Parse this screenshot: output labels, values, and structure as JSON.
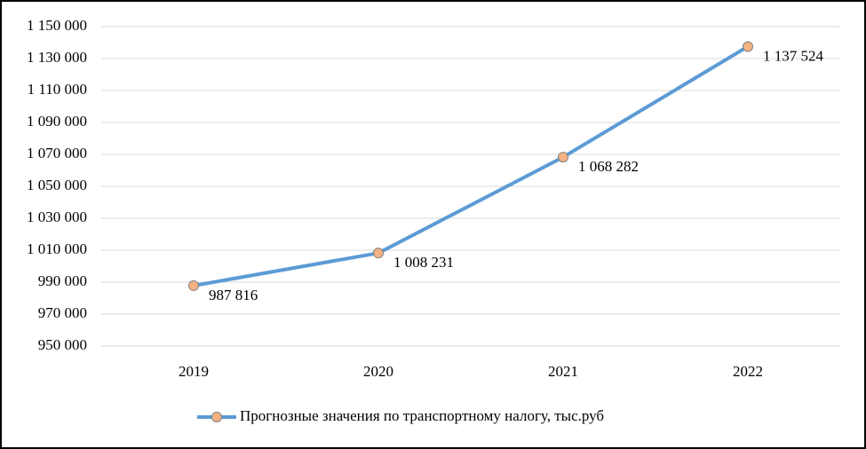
{
  "chart_data": {
    "type": "line",
    "categories": [
      "2019",
      "2020",
      "2021",
      "2022"
    ],
    "series": [
      {
        "name": "Прогнозные значения по транспортному налогу, тыс.руб",
        "color": "#5b9bd5",
        "marker_color": "#f4b183",
        "values": [
          987816,
          1008231,
          1068282,
          1137524
        ],
        "value_labels": [
          "987 816",
          "1 008 231",
          "1 068 282",
          "1 137 524"
        ]
      }
    ],
    "ylim": [
      950000,
      1150000
    ],
    "yticks": [
      {
        "value": 950000,
        "label": "950 000"
      },
      {
        "value": 970000,
        "label": "970 000"
      },
      {
        "value": 990000,
        "label": "990 000"
      },
      {
        "value": 1010000,
        "label": "1 010 000"
      },
      {
        "value": 1030000,
        "label": "1 030 000"
      },
      {
        "value": 1050000,
        "label": "1 050 000"
      },
      {
        "value": 1070000,
        "label": "1 070 000"
      },
      {
        "value": 1090000,
        "label": "1 090 000"
      },
      {
        "value": 1110000,
        "label": "1 110 000"
      },
      {
        "value": 1130000,
        "label": "1 130 000"
      },
      {
        "value": 1150000,
        "label": "1 150 000"
      }
    ],
    "grid": true,
    "legend": "bottom"
  }
}
